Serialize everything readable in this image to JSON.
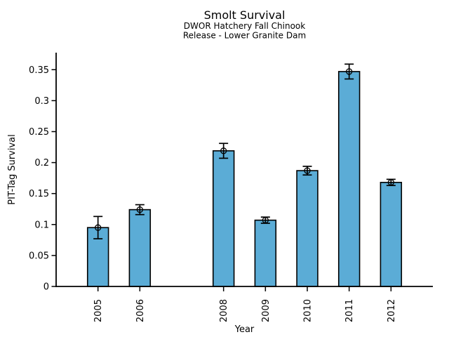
{
  "figure": {
    "background": "#ffffff",
    "text_color": "#000000"
  },
  "chart_data": {
    "type": "bar",
    "title": "Smolt Survival",
    "subtitle_line1": "DWOR Hatchery Fall Chinook",
    "subtitle_line2": "Release - Lower Granite Dam",
    "xlabel": "Year",
    "ylabel": "PIT-Tag Survival",
    "categories": [
      2005,
      2006,
      2008,
      2009,
      2010,
      2011,
      2012
    ],
    "values": [
      0.095,
      0.124,
      0.219,
      0.107,
      0.187,
      0.347,
      0.168
    ],
    "yerr": [
      0.018,
      0.008,
      0.012,
      0.005,
      0.007,
      0.012,
      0.005
    ],
    "xlim": [
      2004,
      2013
    ],
    "ylim": [
      0,
      0.3775
    ],
    "yticks": [
      0,
      0.05,
      0.1,
      0.15,
      0.2,
      0.25,
      0.3,
      0.35
    ],
    "ytick_labels": [
      "0",
      "0.05",
      "0.1",
      "0.15",
      "0.2",
      "0.25",
      "0.3",
      "0.35"
    ],
    "bar_width_units": 0.5,
    "bar_color": "#5BACD6",
    "bar_edge_color": "#000000",
    "error_color": "#000000",
    "marker": "open-circle",
    "grid": false,
    "legend": null
  }
}
